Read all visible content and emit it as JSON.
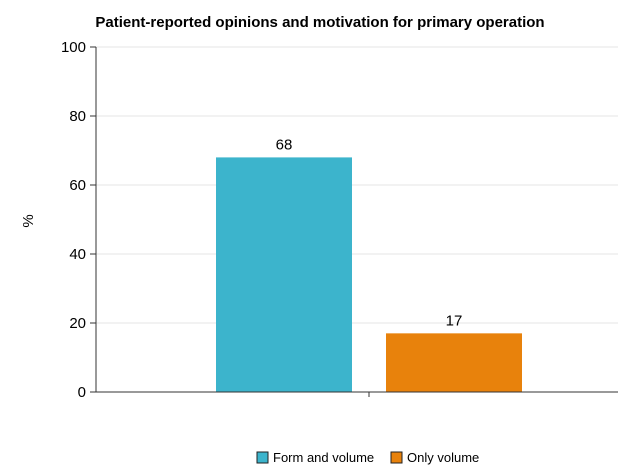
{
  "chart_data": {
    "type": "bar",
    "title": "Patient-reported opinions and motivation for primary operation",
    "ylabel": "%",
    "xlabel": "",
    "ylim": [
      0,
      100
    ],
    "yticks": [
      0,
      20,
      40,
      60,
      80,
      100
    ],
    "grid": true,
    "legend_position": "bottom",
    "series": [
      {
        "name": "Form and volume",
        "value": 68,
        "color": "#3cb4cc"
      },
      {
        "name": "Only volume",
        "value": 17,
        "color": "#e8820c"
      }
    ]
  }
}
